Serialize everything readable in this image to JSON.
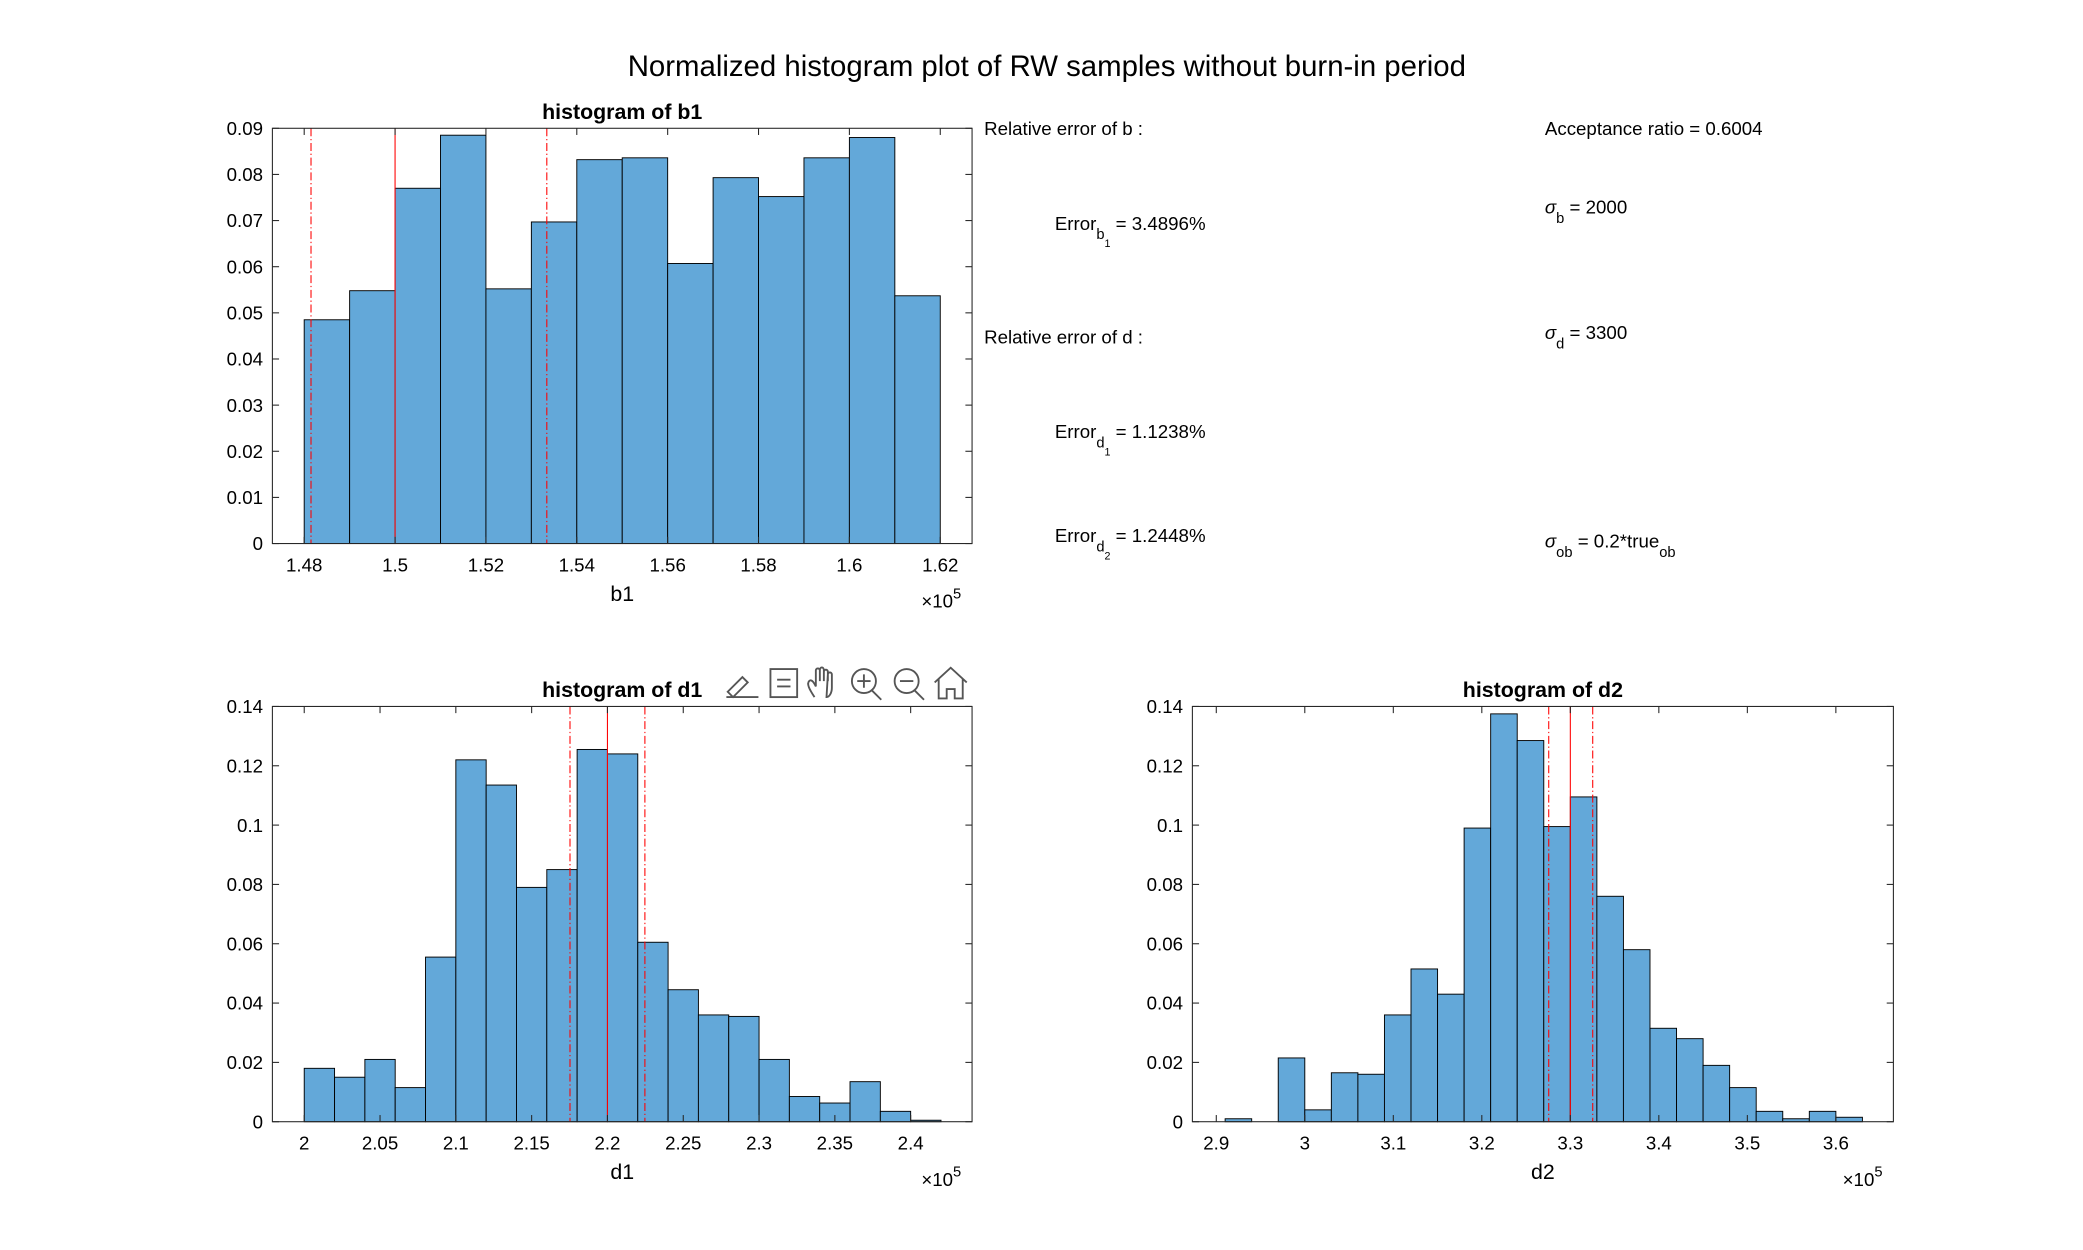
{
  "title": "Normalized histogram plot of RW samples without burn-in period",
  "annotations": [
    [
      "Relative error of b :"
    ],
    [
      "Error",
      "b",
      "1",
      " = 3.4896%"
    ],
    [
      "Relative error of d :"
    ],
    [
      "Error",
      "d",
      "1",
      " = 1.1238%"
    ],
    [
      "Error",
      "d",
      "2",
      " = 1.2448%"
    ],
    [
      "Acceptance ratio = 0.6004"
    ],
    [
      "σ",
      "b",
      " = 2000"
    ],
    [
      "σ",
      "d",
      " = 3300"
    ],
    [
      "σ",
      "ob",
      " = 0.2*true",
      "ob"
    ]
  ],
  "chart_data": [
    {
      "type": "histogram",
      "title": "histogram of b1",
      "xlabel": "b1",
      "x_multiplier": {
        "base": "×10",
        "power": "5"
      },
      "color": "#63a8d9",
      "edge_color": "#000000",
      "bins": [
        1.48,
        1.49,
        1.5,
        1.51,
        1.52,
        1.53,
        1.54,
        1.55,
        1.56,
        1.57,
        1.58,
        1.59,
        1.6,
        1.61,
        1.62
      ],
      "values": [
        0.0485,
        0.0548,
        0.077,
        0.0885,
        0.0552,
        0.0697,
        0.0832,
        0.0836,
        0.0607,
        0.0793,
        0.0752,
        0.0836,
        0.088,
        0.0537
      ],
      "xlim": [
        1.473,
        1.627
      ],
      "xticks": [
        1.48,
        1.5,
        1.52,
        1.54,
        1.56,
        1.58,
        1.6,
        1.62
      ],
      "ylim": [
        0,
        0.09
      ],
      "yticks": [
        0,
        0.01,
        0.02,
        0.03,
        0.04,
        0.05,
        0.06,
        0.07,
        0.08,
        0.09
      ],
      "reference_color": "#ff0000",
      "reference_lines": [
        {
          "value": 1.4815,
          "style": "dash-dot"
        },
        {
          "value": 1.5,
          "style": "solid"
        },
        {
          "value": 1.5334,
          "style": "dash-dot"
        }
      ]
    },
    {
      "type": "histogram",
      "title": "histogram of d1",
      "xlabel": "d1",
      "x_multiplier": {
        "base": "×10",
        "power": "5"
      },
      "color": "#63a8d9",
      "edge_color": "#000000",
      "bins": [
        2.0,
        2.02,
        2.04,
        2.06,
        2.08,
        2.1,
        2.12,
        2.14,
        2.16,
        2.18,
        2.2,
        2.22,
        2.24,
        2.26,
        2.28,
        2.3,
        2.32,
        2.34,
        2.36,
        2.38,
        2.4,
        2.42
      ],
      "values": [
        0.018,
        0.015,
        0.021,
        0.0115,
        0.0555,
        0.122,
        0.1135,
        0.079,
        0.085,
        0.1255,
        0.124,
        0.0605,
        0.0445,
        0.036,
        0.0355,
        0.021,
        0.0085,
        0.0063,
        0.0135,
        0.0035,
        0.0005
      ],
      "xlim": [
        1.979,
        2.4405
      ],
      "xticks": [
        2,
        2.05,
        2.1,
        2.15,
        2.2,
        2.25,
        2.3,
        2.35,
        2.4
      ],
      "ylim": [
        0,
        0.14
      ],
      "yticks": [
        0,
        0.02,
        0.04,
        0.06,
        0.08,
        0.1,
        0.12,
        0.14
      ],
      "reference_color": "#ff0000",
      "reference_lines": [
        {
          "value": 2.1753,
          "style": "dash-dot"
        },
        {
          "value": 2.2,
          "style": "solid"
        },
        {
          "value": 2.2247,
          "style": "dash-dot"
        }
      ]
    },
    {
      "type": "histogram",
      "title": "histogram of d2",
      "xlabel": "d2",
      "x_multiplier": {
        "base": "×10",
        "power": "5"
      },
      "color": "#63a8d9",
      "edge_color": "#000000",
      "bins": [
        2.91,
        2.94,
        2.97,
        3.0,
        3.03,
        3.06,
        3.09,
        3.12,
        3.15,
        3.18,
        3.21,
        3.24,
        3.27,
        3.3,
        3.33,
        3.36,
        3.39,
        3.42,
        3.45,
        3.48,
        3.51,
        3.54,
        3.57,
        3.6,
        3.63
      ],
      "values": [
        0.001,
        0,
        0.0215,
        0.004,
        0.0165,
        0.016,
        0.036,
        0.0515,
        0.043,
        0.099,
        0.1375,
        0.1285,
        0.0995,
        0.1095,
        0.076,
        0.058,
        0.0315,
        0.028,
        0.019,
        0.0115,
        0.0035,
        0.001,
        0.0035,
        0.0015
      ],
      "xlim": [
        2.873,
        3.665
      ],
      "xticks": [
        2.9,
        3,
        3.1,
        3.2,
        3.3,
        3.4,
        3.5,
        3.6
      ],
      "ylim": [
        0,
        0.14
      ],
      "yticks": [
        0,
        0.02,
        0.04,
        0.06,
        0.08,
        0.1,
        0.12,
        0.14
      ],
      "reference_color": "#ff0000",
      "reference_lines": [
        {
          "value": 3.2756,
          "style": "dash-dot"
        },
        {
          "value": 3.3,
          "style": "solid"
        },
        {
          "value": 3.3253,
          "style": "dash-dot"
        }
      ]
    }
  ]
}
